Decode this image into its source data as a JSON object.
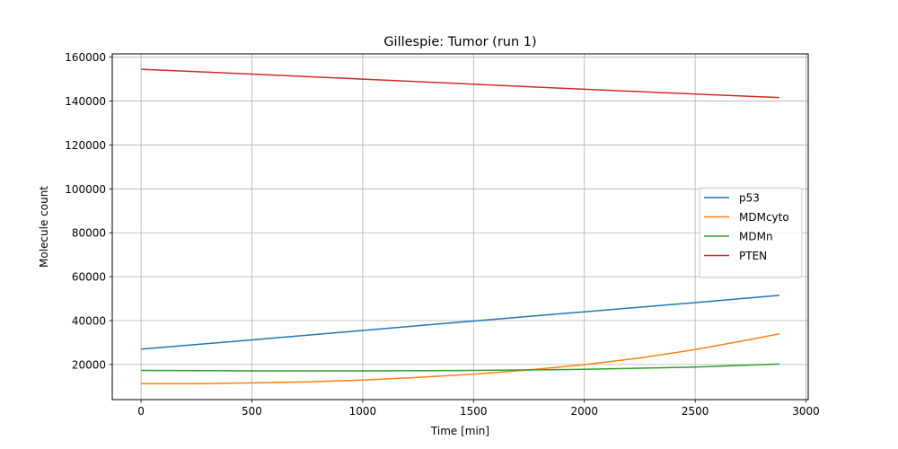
{
  "chart_data": {
    "type": "line",
    "title": "Gillespie: Tumor (run 1)",
    "xlabel": "Time [min]",
    "ylabel": "Molecule count",
    "xlim": [
      -130,
      3010
    ],
    "ylim": [
      4000,
      161500
    ],
    "xticks": [
      0,
      500,
      1000,
      1500,
      2000,
      2500,
      3000
    ],
    "yticks": [
      20000,
      40000,
      60000,
      80000,
      100000,
      120000,
      140000,
      160000
    ],
    "grid": true,
    "legend_position": "center-right",
    "series": [
      {
        "name": "p53",
        "color": "#1f77b4",
        "x": [
          0,
          500,
          1000,
          1500,
          2000,
          2500,
          2880
        ],
        "y": [
          27000,
          31200,
          35500,
          39800,
          44000,
          48200,
          51500
        ]
      },
      {
        "name": "MDMcyto",
        "color": "#ff7f0e",
        "x": [
          0,
          250,
          500,
          750,
          1000,
          1250,
          1500,
          1750,
          2000,
          2250,
          2500,
          2750,
          2880
        ],
        "y": [
          11300,
          11300,
          11600,
          12100,
          12900,
          14100,
          15600,
          17500,
          19900,
          23000,
          26800,
          31400,
          34000
        ]
      },
      {
        "name": "MDMn",
        "color": "#2ca02c",
        "x": [
          0,
          500,
          1000,
          1500,
          2000,
          2500,
          2880
        ],
        "y": [
          17300,
          17100,
          17100,
          17300,
          17800,
          18800,
          20200
        ]
      },
      {
        "name": "PTEN",
        "color": "#d62728",
        "x": [
          0,
          500,
          1000,
          1500,
          2000,
          2500,
          2880
        ],
        "y": [
          154500,
          152300,
          150000,
          147700,
          145400,
          143200,
          141600
        ]
      }
    ]
  }
}
